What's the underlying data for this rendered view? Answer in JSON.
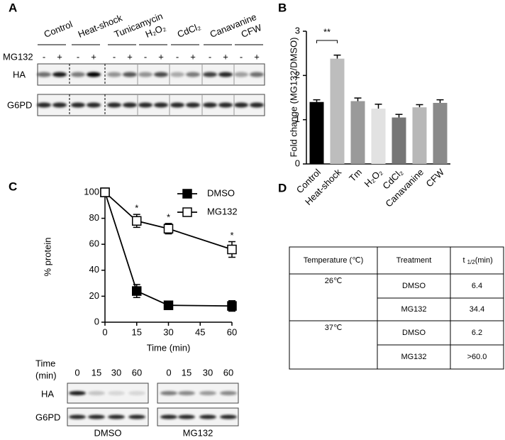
{
  "panel_labels": [
    "A",
    "B",
    "C",
    "D"
  ],
  "blot_a": {
    "conditions": [
      "Control",
      "Heat-shock",
      "Tunicamycin",
      "H₂O₂",
      "CdCl₂",
      "Canavanine",
      "CFW"
    ],
    "treatment": "MG132",
    "signs": [
      "-",
      "+"
    ],
    "rows": [
      "HA",
      "G6PD"
    ]
  },
  "chart_data": [
    {
      "type": "bar",
      "y_label": "Fold change (MG132/DMSO)",
      "categories": [
        "Control",
        "Heat-shock",
        "Tm",
        "H₂O₂",
        "CdCl₂",
        "Canavanine",
        "CFW"
      ],
      "values": [
        1.4,
        2.38,
        1.42,
        1.25,
        1.05,
        1.28,
        1.38
      ],
      "errors": [
        0.05,
        0.08,
        0.07,
        0.1,
        0.07,
        0.06,
        0.07
      ],
      "colors": [
        "#000000",
        "#bdbdbd",
        "#9a9a9a",
        "#e2e2e2",
        "#767676",
        "#b8b8b8",
        "#8a8a8a"
      ],
      "ylim": [
        0,
        3
      ],
      "yticks": [
        0,
        1,
        2,
        3
      ],
      "annotation": "**"
    },
    {
      "type": "line",
      "x_label": "Time (min)",
      "y_label": "% protein",
      "x": [
        0,
        15,
        30,
        60
      ],
      "series": [
        {
          "name": "DMSO",
          "color": "#000000",
          "marker_filled": true,
          "values": [
            100,
            24,
            13,
            12.5
          ],
          "errors": [
            0,
            5,
            2,
            4
          ]
        },
        {
          "name": "MG132",
          "color": "#000000",
          "marker_filled": false,
          "values": [
            100,
            78,
            72,
            56
          ],
          "errors": [
            0,
            5,
            4,
            6
          ]
        }
      ],
      "annotations": [
        null,
        "*",
        "*",
        "*"
      ],
      "xlim": [
        0,
        60
      ],
      "xticks": [
        0,
        15,
        30,
        45,
        60
      ],
      "ylim": [
        0,
        100
      ],
      "yticks": [
        0,
        20,
        40,
        60,
        80,
        100
      ]
    }
  ],
  "blot_c": {
    "time_label": [
      "Time",
      "(min)"
    ],
    "lanes": [
      "0",
      "15",
      "30",
      "60"
    ],
    "rows": [
      "HA",
      "G6PD"
    ],
    "groups": [
      "DMSO",
      "MG132"
    ]
  },
  "table_d": {
    "header": {
      "temperature": "Temperature (℃)",
      "treatment": "Treatment",
      "t": "t",
      "sub": "1/2",
      "unit": "(min)"
    },
    "groups": [
      {
        "temperature": "26℃",
        "rows": [
          [
            "DMSO",
            "6.4"
          ],
          [
            "MG132",
            "34.4"
          ]
        ]
      },
      {
        "temperature": "37℃",
        "rows": [
          [
            "DMSO",
            "6.2"
          ],
          [
            "MG132",
            ">60.0"
          ]
        ]
      }
    ]
  }
}
